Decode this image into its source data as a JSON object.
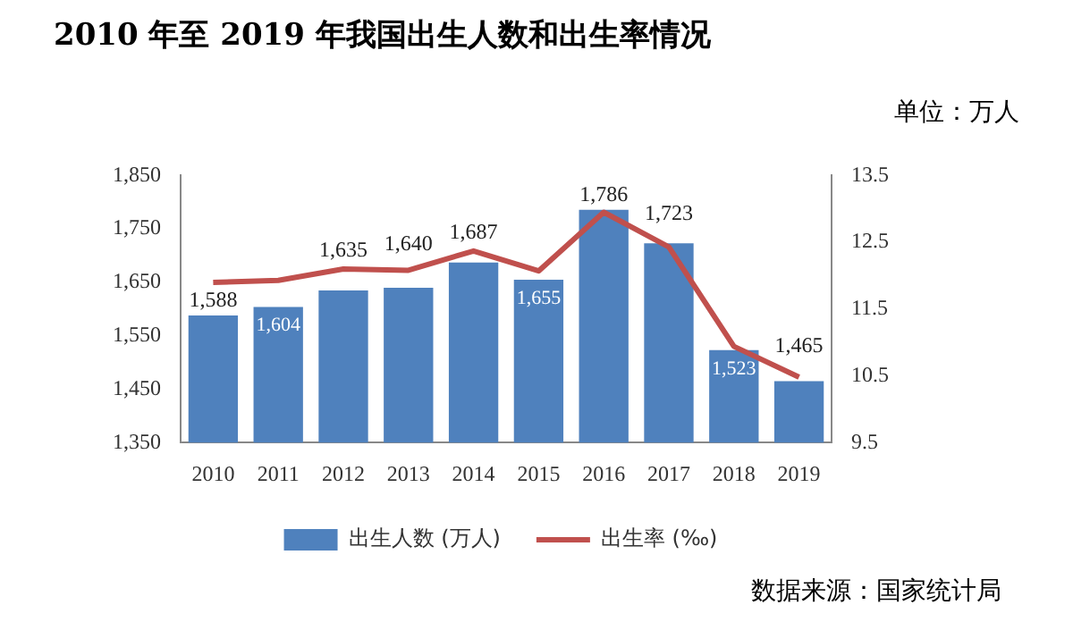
{
  "chart_data": {
    "type": "bar",
    "title": "2010 年至 2019 年我国出生人数和出生率情况",
    "annotations": [
      "单位：万人",
      "数据来源：国家统计局"
    ],
    "categories": [
      "2010",
      "2011",
      "2012",
      "2013",
      "2014",
      "2015",
      "2016",
      "2017",
      "2018",
      "2019"
    ],
    "series": [
      {
        "name": "出生人数 (万人)",
        "type": "bar",
        "color": "#4f81bd",
        "values": [
          1588,
          1604,
          1635,
          1640,
          1687,
          1655,
          1786,
          1723,
          1523,
          1465
        ],
        "value_labels": [
          "1,588",
          "1,604",
          "1,635",
          "1,640",
          "1,687",
          "1,655",
          "1,786",
          "1,723",
          "1,523",
          "1,465"
        ]
      },
      {
        "name": "出生率 (‰)",
        "type": "line",
        "axis": "y2",
        "color": "#c0504d",
        "values": [
          11.9,
          11.93,
          12.1,
          12.08,
          12.37,
          12.07,
          12.95,
          12.43,
          10.94,
          10.48
        ]
      }
    ],
    "ylim": [
      1350,
      1850
    ],
    "yticks": [
      {
        "value": 1350,
        "label": "1,350"
      },
      {
        "value": 1450,
        "label": "1,450"
      },
      {
        "value": 1550,
        "label": "1,550"
      },
      {
        "value": 1650,
        "label": "1,650"
      },
      {
        "value": 1750,
        "label": "1,750"
      },
      {
        "value": 1850,
        "label": "1,850"
      }
    ],
    "y2lim": [
      9.5,
      13.5
    ],
    "y2ticks": [
      9.5,
      10.5,
      11.5,
      12.5,
      13.5
    ],
    "grid": false,
    "legend": "bottom",
    "marker": "none",
    "line_style": "solid"
  }
}
